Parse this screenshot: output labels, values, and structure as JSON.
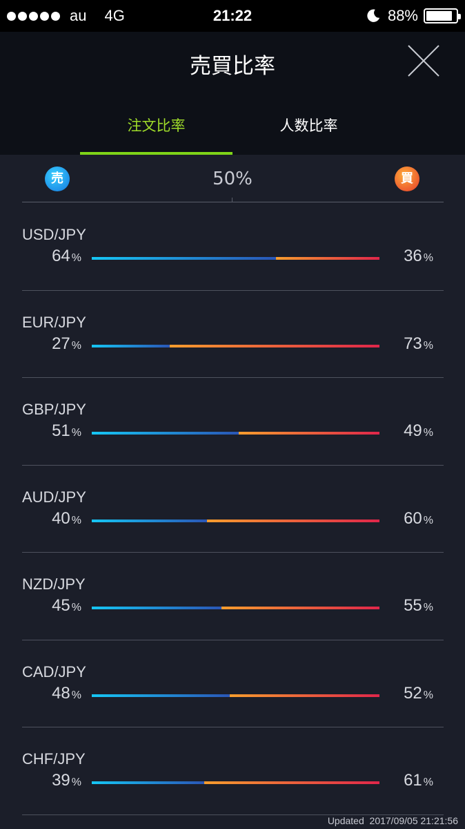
{
  "status_bar": {
    "carrier": "au",
    "network": "4G",
    "time": "21:22",
    "battery": "88%",
    "battery_level": 0.88,
    "signal_dots": 5
  },
  "nav": {
    "title": "売買比率",
    "tabs": [
      {
        "label": "注文比率",
        "active": true
      },
      {
        "label": "人数比率",
        "active": false
      }
    ]
  },
  "header": {
    "sell_badge": "売",
    "buy_badge": "買",
    "mid_label": "50%"
  },
  "unit": "%",
  "rows": [
    {
      "pair": "USD/JPY",
      "sell": "64",
      "buy": "36"
    },
    {
      "pair": "EUR/JPY",
      "sell": "27",
      "buy": "73"
    },
    {
      "pair": "GBP/JPY",
      "sell": "51",
      "buy": "49"
    },
    {
      "pair": "AUD/JPY",
      "sell": "40",
      "buy": "60"
    },
    {
      "pair": "NZD/JPY",
      "sell": "45",
      "buy": "55"
    },
    {
      "pair": "CAD/JPY",
      "sell": "48",
      "buy": "52"
    },
    {
      "pair": "CHF/JPY",
      "sell": "39",
      "buy": "61"
    }
  ],
  "footer": {
    "updated_label": "Updated",
    "updated_time": "2017/09/05 21:21:56"
  },
  "colors": {
    "active_tab": "#9fdc2a",
    "sell_start": "#16c6f4",
    "sell_end": "#2a56b6",
    "buy_start": "#f69d2e",
    "buy_end": "#e0264a"
  }
}
